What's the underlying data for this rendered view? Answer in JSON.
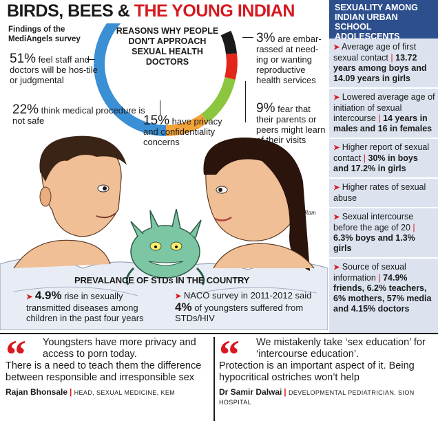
{
  "headline": {
    "part1": "BIRDS, BEES & ",
    "part2": "THE YOUNG INDIAN"
  },
  "findings_label": "Findings of the MediAngels survey",
  "reasons_title": "REASONS WHY PEOPLE DON'T APPROACH SEXUAL HEALTH DOCTORS",
  "reasons": [
    {
      "value": "51%",
      "text": "feel staff and doctors will be hos-tile or judgmental"
    },
    {
      "value": "22%",
      "text": "think medical procedure is not safe"
    },
    {
      "value": "15%",
      "text": "have privacy and confidentiality concerns"
    },
    {
      "value": "3%",
      "text": "are embar-rassed at need-ing or wanting reproductive health services"
    },
    {
      "value": "9%",
      "text": "fear that their parents or peers might learn of their visits"
    }
  ],
  "donut_colors": {
    "blue": "#3b8fd4",
    "orange": "#f2a33a",
    "green": "#8cc63f",
    "red": "#e2261c",
    "black": "#1a1a1a"
  },
  "credit": "Ram",
  "stds": {
    "title": "PREVALANCE OF STDs IN THE COUNTRY",
    "item1": {
      "value": "4.9%",
      "text": "rise in sexually transmitted diseases among children in the past four years"
    },
    "item2": {
      "pre": "NACO survey in 2011-2012 said",
      "value": "4%",
      "post": "of youngsters suffered from STDs/HIV"
    }
  },
  "sidebar": {
    "title": "SEXUALITY AMONG INDIAN URBAN SCHOOL ADOLESCENTS",
    "items": [
      {
        "text": "Average age of first sexual contact",
        "bold": "13.72 years among boys and 14.09 years in girls"
      },
      {
        "text": "Lowered average age of initiation of sexual intercourse",
        "bold": "14 years in males and 16 in females"
      },
      {
        "text": "Higher report of sexual contact",
        "bold": "30% in boys and 17.2% in girls"
      },
      {
        "text": "Higher rates of sexual abuse",
        "bold": ""
      },
      {
        "text": "Sexual intercourse before the age of 20",
        "bold": "6.3% boys and 1.3% girls"
      },
      {
        "text": "Source of sexual information",
        "bold": "74.9% friends, 6.2% teachers, 6% mothers, 57% media and 4.15% doctors"
      }
    ]
  },
  "quotes": [
    {
      "first": "Youngsters have more privacy and access to porn today.",
      "rest": "There is a need to teach them the difference between responsible and irresponsible sex",
      "name": "Rajan Bhonsale",
      "role": "HEAD, SEXUAL MEDICINE, KEM"
    },
    {
      "first": "We mistakenly take ‘sex education’ for ‘intercourse education’.",
      "rest": "Protection is an important aspect of it. Being hypocritical ostriches won’t help",
      "name": "Dr Samir Dalwai",
      "role": "DEVELOPMENTAL PEDIATRICIAN, SION HOSPITAL"
    }
  ]
}
